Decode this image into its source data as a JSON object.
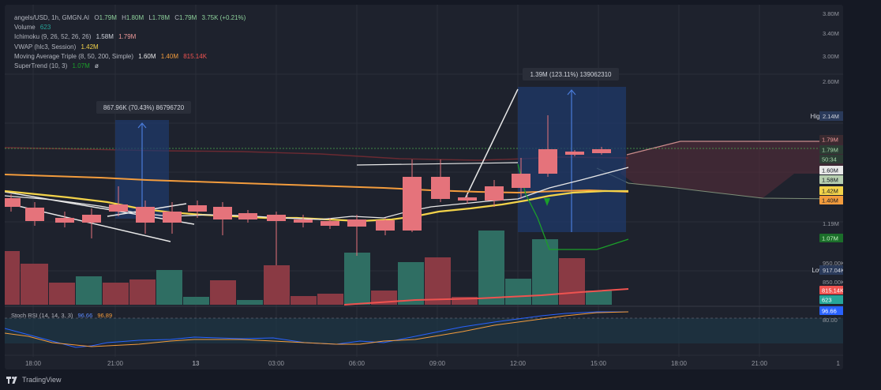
{
  "legend": {
    "symbol_line": "angels/USD, 1h, GMGN.AI",
    "o_label": "O",
    "o_value": "1.79M",
    "h_label": "H",
    "h_value": "1.80M",
    "l_label": "L",
    "l_value": "1.78M",
    "c_label": "C",
    "c_value": "1.79M",
    "change": "3.75K (+0.21%)",
    "volume_label": "Volume",
    "volume_value": "623",
    "ichimoku_label": "Ichimoku (9, 26, 52, 26, 26)",
    "ichimoku_v1": "1.58M",
    "ichimoku_v2": "1.79M",
    "vwap_label": "VWAP (hlc3, Session)",
    "vwap_value": "1.42M",
    "ma_label": "Moving Average Triple (8, 50, 200, Simple)",
    "ma_v1": "1.60M",
    "ma_v2": "1.40M",
    "ma_v3": "815.14K",
    "supertrend_label": "SuperTrend (10, 3)",
    "supertrend_v1": "1.07M",
    "supertrend_v2": "ø"
  },
  "price_axis": {
    "ticks": [
      "3.80M",
      "3.40M",
      "3.00M",
      "2.60M",
      "1.19M",
      "950.00K",
      "850.00K"
    ]
  },
  "price_tags": [
    {
      "text": "1.79M",
      "bg": "#3a2a30",
      "fg": "#ef9a9a"
    },
    {
      "text": "1.79M",
      "bg": "#2b3d34",
      "fg": "#a5d6a7"
    },
    {
      "text": "50:34",
      "bg": "#2b3d34",
      "fg": "#a5d6a7"
    },
    {
      "text": "1.60M",
      "bg": "#e8e8e8",
      "fg": "#131722"
    },
    {
      "text": "1.58M",
      "bg": "#b7cfb0",
      "fg": "#131722"
    },
    {
      "text": "1.42M",
      "bg": "#f3d34a",
      "fg": "#131722"
    },
    {
      "text": "1.40M",
      "bg": "#f39c3d",
      "fg": "#131722"
    },
    {
      "text": "1.07M",
      "bg": "#1b6e2a",
      "fg": "#c8f7c5"
    },
    {
      "text": "815.14K",
      "bg": "#ef5350",
      "fg": "#ffffff"
    },
    {
      "text": "623",
      "bg": "#26a69a",
      "fg": "#ffffff"
    },
    {
      "text": "96.66",
      "bg": "#2962ff",
      "fg": "#ffffff"
    }
  ],
  "high_marker": {
    "label": "High",
    "value": "2.14M"
  },
  "low_marker": {
    "label": "Low",
    "value": "917.04K"
  },
  "time_axis": {
    "ticks": [
      "18:00",
      "21:00",
      "13",
      "03:00",
      "06:00",
      "09:00",
      "12:00",
      "15:00",
      "18:00",
      "21:00",
      "1"
    ]
  },
  "stoch": {
    "label": "Stoch RSI (14, 14, 3, 3)",
    "k_value": "96.66",
    "d_value": "96.89",
    "axis_tick": "80.00"
  },
  "measures": [
    {
      "text": "867.96K (70.43%) 86796720"
    },
    {
      "text": "1.39M (123.11%) 139062310"
    }
  ],
  "footer": {
    "brand": "TradingView"
  },
  "colors": {
    "up": "#26a69a",
    "up_candle": "#8ed19b",
    "down": "#ef5350",
    "down_candle": "#e5737b",
    "ma_fast": "#e8e8e8",
    "ma_mid": "#f3d34a",
    "ma_slow": "#f39c3d",
    "supertrend": "#1b9e2a",
    "measure_box": "#1e3a6e"
  }
}
